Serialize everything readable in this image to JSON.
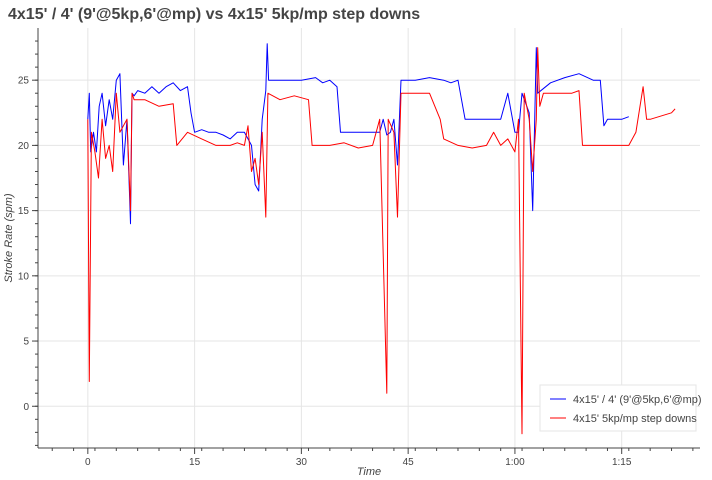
{
  "chart_data": {
    "type": "line",
    "title": "4x15' / 4' (9'@5kp,6'@mp) vs 4x15' 5kp/mp step downs",
    "xlabel": "Time",
    "ylabel": "Stroke Rate (spm)",
    "x_unit": "minutes",
    "xlim": [
      -7,
      86
    ],
    "ylim": [
      -3.2,
      29
    ],
    "x_ticks": [
      {
        "value": 0,
        "label": "0"
      },
      {
        "value": 15,
        "label": "15"
      },
      {
        "value": 30,
        "label": "30"
      },
      {
        "value": 45,
        "label": "45"
      },
      {
        "value": 60,
        "label": "1:00"
      },
      {
        "value": 75,
        "label": "1:15"
      }
    ],
    "y_ticks": [
      {
        "value": 0,
        "label": "0"
      },
      {
        "value": 5,
        "label": "5"
      },
      {
        "value": 10,
        "label": "10"
      },
      {
        "value": 15,
        "label": "15"
      },
      {
        "value": 20,
        "label": "20"
      },
      {
        "value": 25,
        "label": "25"
      }
    ],
    "grid": true,
    "legend_position": "bottom-right",
    "series": [
      {
        "name": "4x15' / 4' (9'@5kp,6'@mp)",
        "color": "#0000ff",
        "points": [
          [
            0,
            22
          ],
          [
            0.2,
            24
          ],
          [
            0.4,
            19.5
          ],
          [
            0.8,
            21
          ],
          [
            1.2,
            19.5
          ],
          [
            1.6,
            23
          ],
          [
            2,
            24
          ],
          [
            2.5,
            21.5
          ],
          [
            3,
            23.5
          ],
          [
            3.5,
            22
          ],
          [
            4,
            25
          ],
          [
            4.5,
            25.5
          ],
          [
            5,
            18.5
          ],
          [
            5.5,
            22
          ],
          [
            6,
            14
          ],
          [
            6.2,
            24
          ],
          [
            6.5,
            23.8
          ],
          [
            7,
            24.2
          ],
          [
            8,
            24
          ],
          [
            9,
            24.5
          ],
          [
            10,
            24
          ],
          [
            11,
            24.5
          ],
          [
            12,
            24.8
          ],
          [
            13,
            24.2
          ],
          [
            14,
            24.5
          ],
          [
            14.5,
            22.5
          ],
          [
            15,
            21
          ],
          [
            16,
            21.2
          ],
          [
            17,
            21
          ],
          [
            18,
            21
          ],
          [
            19,
            20.8
          ],
          [
            20,
            20.5
          ],
          [
            21,
            21
          ],
          [
            22,
            21
          ],
          [
            22.5,
            20.5
          ],
          [
            23,
            20
          ],
          [
            23.5,
            17
          ],
          [
            24,
            16.5
          ],
          [
            24.5,
            22
          ],
          [
            25,
            24.2
          ],
          [
            25.2,
            27.8
          ],
          [
            25.4,
            25
          ],
          [
            27,
            25
          ],
          [
            30,
            25
          ],
          [
            32,
            25.2
          ],
          [
            33,
            24.8
          ],
          [
            34,
            25
          ],
          [
            35,
            24.5
          ],
          [
            35.5,
            21
          ],
          [
            38,
            21
          ],
          [
            40,
            21
          ],
          [
            41,
            21
          ],
          [
            41.5,
            22
          ],
          [
            42,
            20.8
          ],
          [
            42.5,
            21
          ],
          [
            43,
            22
          ],
          [
            43.5,
            18.5
          ],
          [
            44,
            25
          ],
          [
            46,
            25
          ],
          [
            48,
            25.2
          ],
          [
            50,
            25
          ],
          [
            51,
            24.8
          ],
          [
            52,
            25
          ],
          [
            53,
            22
          ],
          [
            55,
            22
          ],
          [
            57,
            22
          ],
          [
            58,
            22
          ],
          [
            59,
            24
          ],
          [
            60,
            21
          ],
          [
            60.5,
            21
          ],
          [
            61,
            24
          ],
          [
            62,
            22.5
          ],
          [
            62.5,
            15
          ],
          [
            63,
            27.5
          ],
          [
            63.2,
            24
          ],
          [
            65,
            24.8
          ],
          [
            67,
            25.2
          ],
          [
            69,
            25.5
          ],
          [
            71,
            25
          ],
          [
            72,
            25
          ],
          [
            72.5,
            21.5
          ],
          [
            73,
            22
          ],
          [
            75,
            22
          ],
          [
            76,
            22.2
          ]
        ]
      },
      {
        "name": "4x15' 5kp/mp step downs",
        "color": "#ff0000",
        "points": [
          [
            0,
            22
          ],
          [
            0.2,
            1.9
          ],
          [
            0.5,
            21
          ],
          [
            1,
            19.5
          ],
          [
            1.5,
            17.5
          ],
          [
            2,
            22
          ],
          [
            2.5,
            19
          ],
          [
            3,
            20
          ],
          [
            3.5,
            18
          ],
          [
            4,
            24
          ],
          [
            4.5,
            21
          ],
          [
            5,
            21.5
          ],
          [
            5.5,
            22
          ],
          [
            6,
            15
          ],
          [
            6.2,
            24
          ],
          [
            6.5,
            23.5
          ],
          [
            8,
            23.5
          ],
          [
            10,
            23
          ],
          [
            12,
            23.2
          ],
          [
            12.5,
            20
          ],
          [
            14,
            21
          ],
          [
            16,
            20.5
          ],
          [
            18,
            20
          ],
          [
            20,
            20
          ],
          [
            21,
            20.2
          ],
          [
            22,
            20
          ],
          [
            22.5,
            21.5
          ],
          [
            23,
            18
          ],
          [
            23.5,
            19
          ],
          [
            24,
            17
          ],
          [
            24.5,
            21
          ],
          [
            25,
            14.5
          ],
          [
            25.3,
            24
          ],
          [
            27,
            23.5
          ],
          [
            29,
            23.8
          ],
          [
            31,
            23.5
          ],
          [
            31.5,
            20
          ],
          [
            34,
            20
          ],
          [
            36,
            20.2
          ],
          [
            38,
            19.8
          ],
          [
            40,
            20
          ],
          [
            41,
            22
          ],
          [
            42,
            1
          ],
          [
            42.2,
            22
          ],
          [
            43,
            21
          ],
          [
            43.5,
            14.5
          ],
          [
            44,
            24
          ],
          [
            46,
            24
          ],
          [
            48,
            24
          ],
          [
            49.5,
            22
          ],
          [
            50,
            20.5
          ],
          [
            52,
            20
          ],
          [
            54,
            19.8
          ],
          [
            56,
            20
          ],
          [
            57,
            21
          ],
          [
            58,
            20
          ],
          [
            59,
            20.5
          ],
          [
            60,
            19.5
          ],
          [
            60.5,
            22
          ],
          [
            61,
            -2.1
          ],
          [
            61.3,
            24
          ],
          [
            62,
            22
          ],
          [
            62.5,
            18
          ],
          [
            63,
            22
          ],
          [
            63.2,
            27.5
          ],
          [
            63.5,
            23
          ],
          [
            64,
            24
          ],
          [
            66,
            24
          ],
          [
            68,
            24
          ],
          [
            69,
            24.2
          ],
          [
            69.5,
            20
          ],
          [
            71,
            20
          ],
          [
            73,
            20
          ],
          [
            76,
            20
          ],
          [
            77,
            21
          ],
          [
            78,
            24.5
          ],
          [
            78.5,
            22
          ],
          [
            79,
            22
          ],
          [
            82,
            22.5
          ],
          [
            82.5,
            22.8
          ]
        ]
      }
    ]
  }
}
